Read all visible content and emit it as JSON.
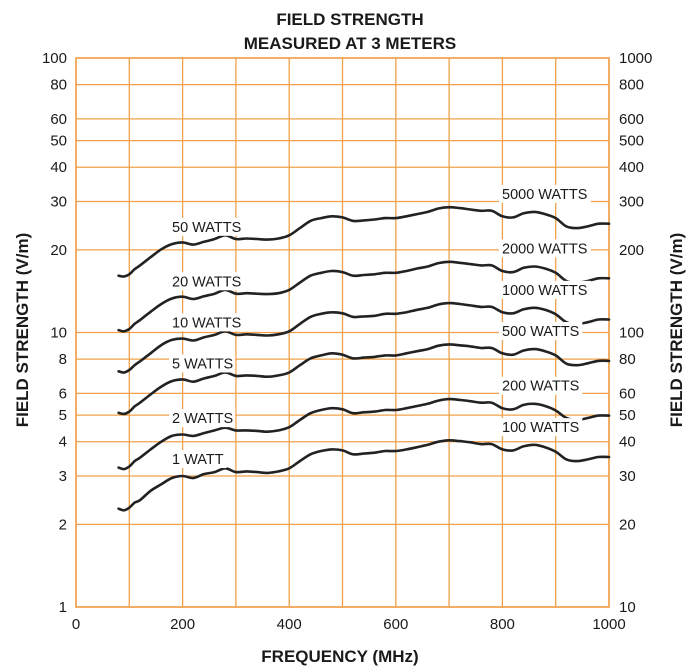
{
  "colors": {
    "grid": "#f0a04a",
    "curve": "#222222",
    "text": "#1a1a1a",
    "background": "#ffffff"
  },
  "chart_data": {
    "type": "line",
    "title": "FIELD STRENGTH",
    "subtitle": "MEASURED AT 3 METERS",
    "xlabel": "FREQUENCY (MHz)",
    "ylabel_left": "FIELD STRENGTH (V/m)",
    "ylabel_right": "FIELD STRENGTH (V/m)",
    "xlim": [
      0,
      1000
    ],
    "ylim_left": [
      1,
      100
    ],
    "ylim_right": [
      10,
      1000
    ],
    "y_scale": "log",
    "grid": true,
    "x_ticks": [
      {
        "value": 0,
        "label": "0"
      },
      {
        "value": 200,
        "label": "200"
      },
      {
        "value": 400,
        "label": "400"
      },
      {
        "value": 600,
        "label": "600"
      },
      {
        "value": 800,
        "label": "800"
      },
      {
        "value": 1000,
        "label": "1000"
      }
    ],
    "x_grid": [
      0,
      100,
      200,
      300,
      400,
      500,
      600,
      700,
      800,
      900,
      1000
    ],
    "y_ticks_left": [
      {
        "value": 1,
        "label": "1"
      },
      {
        "value": 2,
        "label": "2"
      },
      {
        "value": 3,
        "label": "3"
      },
      {
        "value": 4,
        "label": "4"
      },
      {
        "value": 5,
        "label": "5"
      },
      {
        "value": 6,
        "label": "6"
      },
      {
        "value": 8,
        "label": "8"
      },
      {
        "value": 10,
        "label": "10"
      },
      {
        "value": 20,
        "label": "20"
      },
      {
        "value": 30,
        "label": "30"
      },
      {
        "value": 40,
        "label": "40"
      },
      {
        "value": 50,
        "label": "50"
      },
      {
        "value": 60,
        "label": "60"
      },
      {
        "value": 80,
        "label": "80"
      },
      {
        "value": 100,
        "label": "100"
      }
    ],
    "y_ticks_right": [
      {
        "value": 10,
        "label": "10"
      },
      {
        "value": 20,
        "label": "20"
      },
      {
        "value": 30,
        "label": "30"
      },
      {
        "value": 40,
        "label": "40"
      },
      {
        "value": 50,
        "label": "50"
      },
      {
        "value": 60,
        "label": "60"
      },
      {
        "value": 80,
        "label": "80"
      },
      {
        "value": 100,
        "label": "100"
      },
      {
        "value": 200,
        "label": "200"
      },
      {
        "value": 300,
        "label": "300"
      },
      {
        "value": 400,
        "label": "400"
      },
      {
        "value": 500,
        "label": "500"
      },
      {
        "value": 600,
        "label": "600"
      },
      {
        "value": 800,
        "label": "800"
      },
      {
        "value": 1000,
        "label": "1000"
      }
    ],
    "y_grid": [
      1,
      2,
      3,
      4,
      5,
      6,
      8,
      10,
      20,
      30,
      40,
      50,
      60,
      80,
      100
    ],
    "x": [
      80,
      90,
      100,
      110,
      120,
      140,
      160,
      180,
      200,
      220,
      240,
      260,
      280,
      300,
      320,
      340,
      360,
      380,
      400,
      420,
      440,
      460,
      480,
      500,
      520,
      540,
      560,
      580,
      600,
      620,
      640,
      660,
      680,
      700,
      720,
      740,
      760,
      780,
      800,
      820,
      840,
      860,
      880,
      900,
      920,
      940,
      960,
      980,
      1000
    ],
    "series": [
      {
        "name": "1 WATT",
        "right_name": "100 WATTS",
        "values": [
          2.28,
          2.25,
          2.3,
          2.4,
          2.45,
          2.65,
          2.8,
          2.95,
          3.0,
          2.95,
          3.05,
          3.1,
          3.2,
          3.1,
          3.12,
          3.1,
          3.08,
          3.12,
          3.2,
          3.4,
          3.6,
          3.7,
          3.75,
          3.72,
          3.6,
          3.62,
          3.65,
          3.7,
          3.7,
          3.75,
          3.82,
          3.9,
          4.0,
          4.05,
          4.02,
          3.98,
          3.92,
          3.92,
          3.75,
          3.72,
          3.85,
          3.9,
          3.82,
          3.68,
          3.45,
          3.4,
          3.45,
          3.52,
          3.52
        ]
      },
      {
        "name": "2 WATTS",
        "right_name": "200 WATTS",
        "values": [
          3.22,
          3.18,
          3.25,
          3.4,
          3.5,
          3.75,
          4.0,
          4.2,
          4.25,
          4.2,
          4.3,
          4.4,
          4.5,
          4.4,
          4.4,
          4.38,
          4.35,
          4.4,
          4.52,
          4.8,
          5.08,
          5.22,
          5.3,
          5.25,
          5.08,
          5.12,
          5.15,
          5.22,
          5.22,
          5.3,
          5.4,
          5.5,
          5.65,
          5.72,
          5.68,
          5.62,
          5.55,
          5.55,
          5.3,
          5.25,
          5.45,
          5.5,
          5.4,
          5.2,
          4.88,
          4.8,
          4.88,
          4.98,
          4.98
        ]
      },
      {
        "name": "5 WATTS",
        "right_name": "500 WATTS",
        "values": [
          5.1,
          5.05,
          5.15,
          5.38,
          5.55,
          5.95,
          6.35,
          6.65,
          6.75,
          6.62,
          6.8,
          6.95,
          7.15,
          6.95,
          6.98,
          6.95,
          6.9,
          6.98,
          7.15,
          7.6,
          8.05,
          8.25,
          8.4,
          8.3,
          8.05,
          8.1,
          8.15,
          8.25,
          8.25,
          8.4,
          8.55,
          8.7,
          8.95,
          9.05,
          8.98,
          8.9,
          8.78,
          8.78,
          8.4,
          8.3,
          8.6,
          8.7,
          8.55,
          8.25,
          7.7,
          7.6,
          7.72,
          7.88,
          7.88
        ]
      },
      {
        "name": "10 WATTS",
        "right_name": "1000 WATTS",
        "values": [
          7.22,
          7.15,
          7.3,
          7.6,
          7.85,
          8.4,
          9.0,
          9.4,
          9.5,
          9.35,
          9.6,
          9.8,
          10.1,
          9.8,
          9.85,
          9.8,
          9.75,
          9.85,
          10.1,
          10.75,
          11.4,
          11.7,
          11.85,
          11.75,
          11.4,
          11.45,
          11.5,
          11.7,
          11.7,
          11.85,
          12.1,
          12.3,
          12.65,
          12.8,
          12.7,
          12.55,
          12.4,
          12.4,
          11.85,
          11.75,
          12.15,
          12.3,
          12.1,
          11.65,
          10.9,
          10.75,
          10.9,
          11.15,
          11.15
        ]
      },
      {
        "name": "20 WATTS",
        "right_name": "2000 WATTS",
        "values": [
          10.2,
          10.1,
          10.3,
          10.75,
          11.1,
          11.9,
          12.7,
          13.3,
          13.5,
          13.25,
          13.55,
          13.85,
          14.3,
          13.85,
          13.9,
          13.85,
          13.8,
          13.9,
          14.3,
          15.2,
          16.1,
          16.5,
          16.75,
          16.6,
          16.1,
          16.2,
          16.3,
          16.5,
          16.5,
          16.75,
          17.1,
          17.4,
          17.9,
          18.1,
          17.95,
          17.75,
          17.55,
          17.55,
          16.75,
          16.6,
          17.2,
          17.4,
          17.1,
          16.5,
          15.4,
          15.2,
          15.4,
          15.75,
          15.75
        ]
      },
      {
        "name": "50 WATTS",
        "right_name": "5000 WATTS",
        "values": [
          16.1,
          16.0,
          16.3,
          17.0,
          17.55,
          18.8,
          20.1,
          21.0,
          21.3,
          20.9,
          21.4,
          21.9,
          22.6,
          21.9,
          22.0,
          21.9,
          21.8,
          22.0,
          22.6,
          24.0,
          25.5,
          26.1,
          26.5,
          26.25,
          25.5,
          25.6,
          25.8,
          26.1,
          26.1,
          26.5,
          27.0,
          27.5,
          28.3,
          28.6,
          28.4,
          28.05,
          27.75,
          27.75,
          26.5,
          26.25,
          27.2,
          27.5,
          27.0,
          26.1,
          24.35,
          24.0,
          24.35,
          24.9,
          24.9
        ]
      }
    ]
  }
}
